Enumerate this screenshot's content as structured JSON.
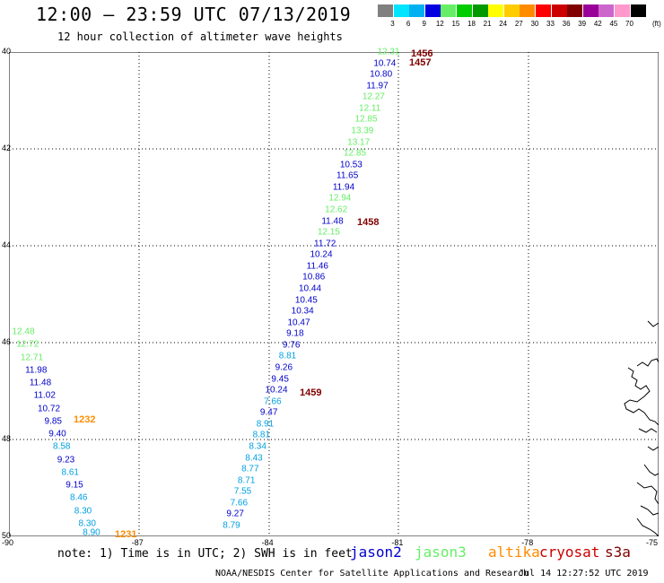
{
  "header": {
    "title": "12:00 – 23:59 UTC 07/13/2019",
    "subtitle": "12 hour collection of altimeter wave heights"
  },
  "legend": {
    "unit": "(ft)",
    "bins": [
      {
        "label": "3",
        "color": "#808080"
      },
      {
        "label": "6",
        "color": "#00e5ff"
      },
      {
        "label": "9",
        "color": "#00b0f0"
      },
      {
        "label": "12",
        "color": "#0000e0"
      },
      {
        "label": "15",
        "color": "#66ee66"
      },
      {
        "label": "18",
        "color": "#00cc00"
      },
      {
        "label": "21",
        "color": "#009900"
      },
      {
        "label": "24",
        "color": "#ffff00"
      },
      {
        "label": "27",
        "color": "#ffcc00"
      },
      {
        "label": "30",
        "color": "#ff8c00"
      },
      {
        "label": "33",
        "color": "#ff0000"
      },
      {
        "label": "36",
        "color": "#cc0000"
      },
      {
        "label": "39",
        "color": "#800000"
      },
      {
        "label": "42",
        "color": "#990099"
      },
      {
        "label": "45",
        "color": "#cc66cc"
      },
      {
        "label": "70",
        "color": "#ff99cc"
      },
      {
        "label": "",
        "color": "#000000"
      }
    ]
  },
  "axes": {
    "lat_ticks": [
      "40",
      "42",
      "44",
      "46",
      "48",
      "50"
    ],
    "lon_ticks": [
      "-90",
      "-87",
      "-84",
      "-81",
      "-78",
      "-75"
    ]
  },
  "colors": {
    "jason2": "#0000cc",
    "jason3": "#66ee66",
    "altika": "#ff8c00",
    "cryosat": "#cc0000",
    "s3a": "#800000",
    "light_blue": "#00a0e0",
    "time_jason": "#800000",
    "time_altika": "#ff8c00"
  },
  "track_east": [
    {
      "v": "12.31",
      "c": "jason3"
    },
    {
      "v": "10.74",
      "c": "jason2"
    },
    {
      "v": "10.80",
      "c": "jason2"
    },
    {
      "v": "11.97",
      "c": "jason2"
    },
    {
      "v": "12.27",
      "c": "jason3"
    },
    {
      "v": "12.11",
      "c": "jason3"
    },
    {
      "v": "12.85",
      "c": "jason3"
    },
    {
      "v": "13.39",
      "c": "jason3"
    },
    {
      "v": "13.17",
      "c": "jason3"
    },
    {
      "v": "12.85",
      "c": "jason3"
    },
    {
      "v": "10.53",
      "c": "jason2"
    },
    {
      "v": "11.65",
      "c": "jason2"
    },
    {
      "v": "11.94",
      "c": "jason2"
    },
    {
      "v": "12.94",
      "c": "jason3"
    },
    {
      "v": "12.62",
      "c": "jason3"
    },
    {
      "v": "11.48",
      "c": "jason2"
    },
    {
      "v": "12.15",
      "c": "jason3"
    },
    {
      "v": "11.72",
      "c": "jason2"
    },
    {
      "v": "10.24",
      "c": "jason2"
    },
    {
      "v": "11.46",
      "c": "jason2"
    },
    {
      "v": "10.86",
      "c": "jason2"
    },
    {
      "v": "10.44",
      "c": "jason2"
    },
    {
      "v": "10.45",
      "c": "jason2"
    },
    {
      "v": "10.34",
      "c": "jason2"
    },
    {
      "v": "10.47",
      "c": "jason2"
    },
    {
      "v": "9.18",
      "c": "jason2"
    },
    {
      "v": "9.76",
      "c": "jason2"
    },
    {
      "v": "8.81",
      "c": "light_blue"
    },
    {
      "v": "9.26",
      "c": "jason2"
    },
    {
      "v": "9.45",
      "c": "jason2"
    },
    {
      "v": "10.24",
      "c": "jason2"
    },
    {
      "v": "7.66",
      "c": "light_blue"
    },
    {
      "v": "9.47",
      "c": "jason2"
    },
    {
      "v": "8.91",
      "c": "light_blue"
    },
    {
      "v": "8.81",
      "c": "light_blue"
    },
    {
      "v": "8.34",
      "c": "light_blue"
    },
    {
      "v": "8.43",
      "c": "light_blue"
    },
    {
      "v": "8.77",
      "c": "light_blue"
    },
    {
      "v": "8.71",
      "c": "light_blue"
    },
    {
      "v": "7.55",
      "c": "light_blue"
    },
    {
      "v": "7.66",
      "c": "light_blue"
    },
    {
      "v": "9.27",
      "c": "jason2"
    },
    {
      "v": "8.79",
      "c": "light_blue"
    }
  ],
  "track_west": [
    {
      "v": "12.48",
      "c": "jason3"
    },
    {
      "v": "12.72",
      "c": "jason3"
    },
    {
      "v": "12.71",
      "c": "jason3"
    },
    {
      "v": "11.98",
      "c": "jason2"
    },
    {
      "v": "11.48",
      "c": "jason2"
    },
    {
      "v": "11.02",
      "c": "jason2"
    },
    {
      "v": "10.72",
      "c": "jason2"
    },
    {
      "v": "9.85",
      "c": "jason2"
    },
    {
      "v": "9.40",
      "c": "jason2"
    },
    {
      "v": "8.58",
      "c": "light_blue"
    },
    {
      "v": "9.23",
      "c": "jason2"
    },
    {
      "v": "8.61",
      "c": "light_blue"
    },
    {
      "v": "9.15",
      "c": "jason2"
    },
    {
      "v": "8.46",
      "c": "light_blue"
    },
    {
      "v": "8.30",
      "c": "light_blue"
    },
    {
      "v": "8.30",
      "c": "light_blue"
    },
    {
      "v": "8.90",
      "c": "light_blue"
    }
  ],
  "times": [
    {
      "label": "1456",
      "c": "time_jason"
    },
    {
      "label": "1457",
      "c": "time_jason"
    },
    {
      "label": "1458",
      "c": "time_jason"
    },
    {
      "label": "1459",
      "c": "time_jason"
    },
    {
      "label": "1232",
      "c": "time_altika"
    },
    {
      "label": "1231",
      "c": "time_altika"
    }
  ],
  "footer": {
    "note": "note: 1) Time is in UTC; 2) SWH is in feet",
    "satellites": [
      {
        "label": "jason2",
        "c": "jason2"
      },
      {
        "label": "jason3",
        "c": "jason3"
      },
      {
        "label": "altika",
        "c": "altika"
      },
      {
        "label": "cryosat",
        "c": "cryosat"
      },
      {
        "label": "s3a",
        "c": "s3a"
      }
    ],
    "credit": "NOAA/NESDIS Center for Satellite Applications and Research",
    "timestamp": "Jul 14 12:27:52 UTC 2019"
  }
}
